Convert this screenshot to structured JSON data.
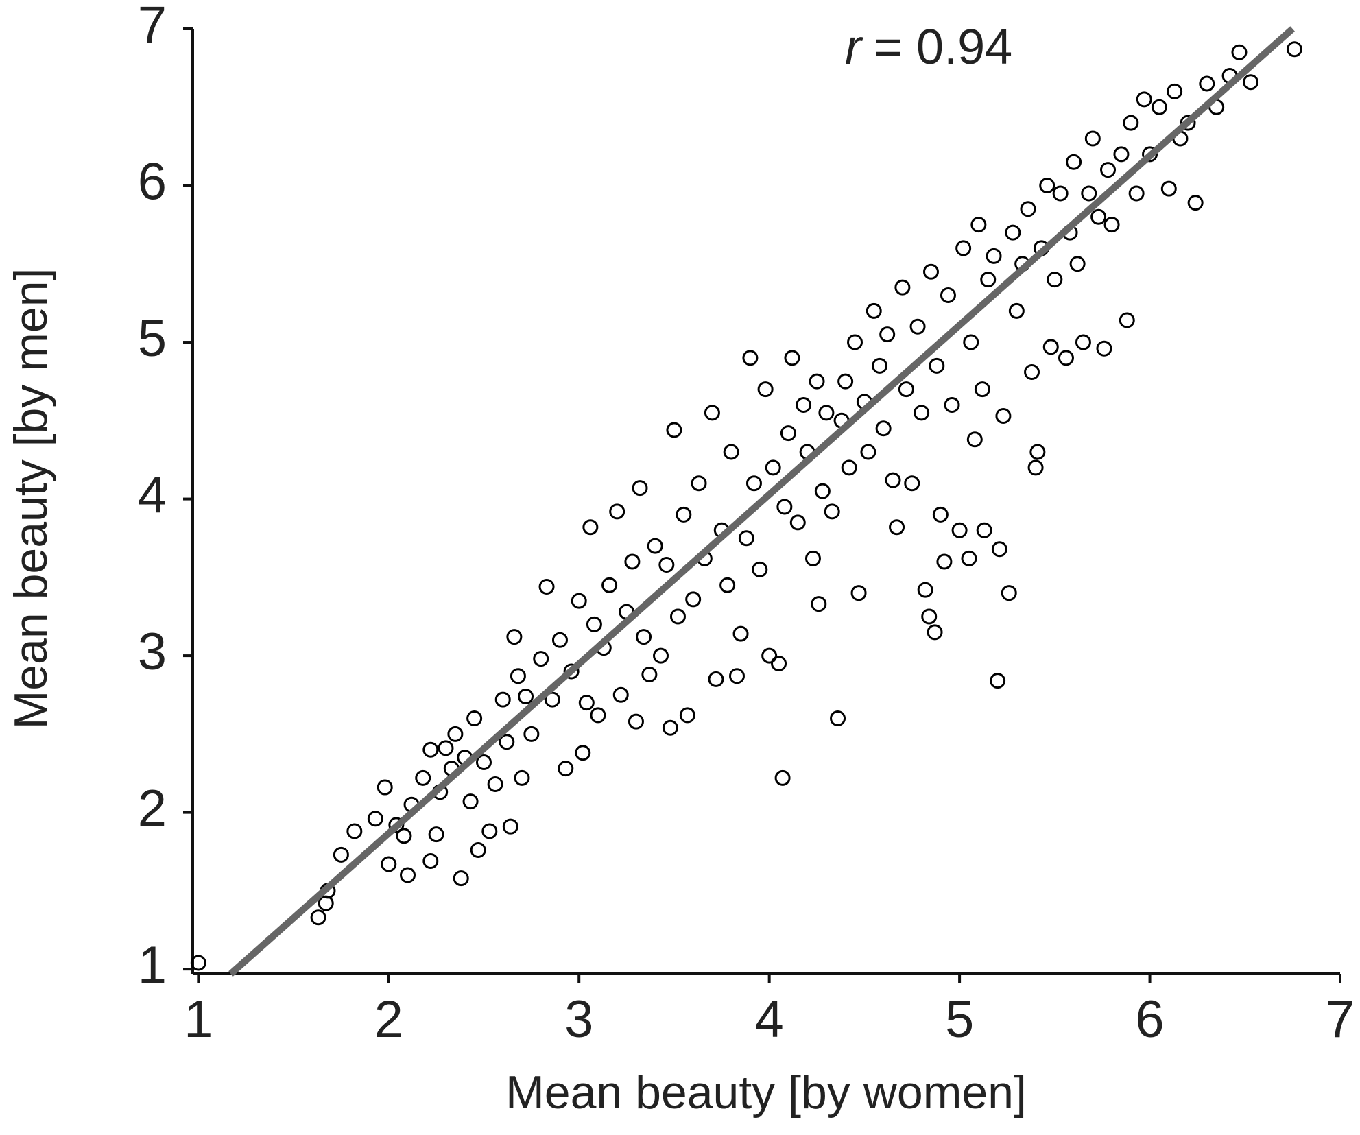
{
  "chart_data": {
    "type": "scatter",
    "xlabel": "Mean beauty [by women]",
    "ylabel": "Mean beauty [by men]",
    "annotation": {
      "variable": "r",
      "text": "= 0.94"
    },
    "xlim": [
      0.97,
      7
    ],
    "ylim": [
      0.97,
      7
    ],
    "xticks": [
      1,
      2,
      3,
      4,
      5,
      6,
      7
    ],
    "yticks": [
      1,
      2,
      3,
      4,
      5,
      6,
      7
    ],
    "marker": "open-circle",
    "series": [
      {
        "color": "#000000",
        "x": [
          1.0,
          1.63,
          1.67,
          1.68,
          1.75,
          1.82,
          1.93,
          1.98,
          2.0,
          2.04,
          2.08,
          2.1,
          2.12,
          2.18,
          2.22,
          2.22,
          2.25,
          2.27,
          2.3,
          2.33,
          2.35,
          2.38,
          2.4,
          2.43,
          2.45,
          2.47,
          2.5,
          2.53,
          2.56,
          2.6,
          2.62,
          2.64,
          2.66,
          2.68,
          2.7,
          2.72,
          2.75,
          2.8,
          2.83,
          2.86,
          2.9,
          2.93,
          2.96,
          3.0,
          3.02,
          3.04,
          3.06,
          3.08,
          3.1,
          3.13,
          3.16,
          3.2,
          3.22,
          3.25,
          3.28,
          3.3,
          3.32,
          3.34,
          3.37,
          3.4,
          3.43,
          3.46,
          3.48,
          3.5,
          3.52,
          3.55,
          3.57,
          3.6,
          3.63,
          3.66,
          3.7,
          3.72,
          3.75,
          3.78,
          3.8,
          3.83,
          3.85,
          3.88,
          3.9,
          3.92,
          3.95,
          3.98,
          4.0,
          4.02,
          4.05,
          4.07,
          4.08,
          4.1,
          4.12,
          4.15,
          4.18,
          4.2,
          4.23,
          4.25,
          4.26,
          4.28,
          4.3,
          4.33,
          4.36,
          4.38,
          4.4,
          4.42,
          4.45,
          4.47,
          4.5,
          4.52,
          4.55,
          4.58,
          4.6,
          4.62,
          4.65,
          4.67,
          4.7,
          4.72,
          4.75,
          4.78,
          4.8,
          4.82,
          4.84,
          4.85,
          4.87,
          4.88,
          4.9,
          4.92,
          4.94,
          4.96,
          5.0,
          5.02,
          5.05,
          5.06,
          5.08,
          5.1,
          5.12,
          5.13,
          5.15,
          5.18,
          5.2,
          5.21,
          5.23,
          5.26,
          5.28,
          5.3,
          5.33,
          5.36,
          5.38,
          5.4,
          5.41,
          5.43,
          5.46,
          5.48,
          5.5,
          5.53,
          5.56,
          5.58,
          5.6,
          5.62,
          5.65,
          5.68,
          5.7,
          5.73,
          5.76,
          5.78,
          5.8,
          5.85,
          5.88,
          5.9,
          5.93,
          5.97,
          6.0,
          6.05,
          6.1,
          6.13,
          6.16,
          6.2,
          6.24,
          6.3,
          6.35,
          6.42,
          6.47,
          6.53,
          6.76
        ],
        "values": [
          1.04,
          1.33,
          1.42,
          1.5,
          1.73,
          1.88,
          1.96,
          2.16,
          1.67,
          1.92,
          1.85,
          1.6,
          2.05,
          2.22,
          1.69,
          2.4,
          1.86,
          2.13,
          2.41,
          2.28,
          2.5,
          1.58,
          2.35,
          2.07,
          2.6,
          1.76,
          2.32,
          1.88,
          2.18,
          2.72,
          2.45,
          1.91,
          3.12,
          2.87,
          2.22,
          2.74,
          2.5,
          2.98,
          3.44,
          2.72,
          3.1,
          2.28,
          2.9,
          3.35,
          2.38,
          2.7,
          3.82,
          3.2,
          2.62,
          3.05,
          3.45,
          3.92,
          2.75,
          3.28,
          3.6,
          2.58,
          4.07,
          3.12,
          2.88,
          3.7,
          3.0,
          3.58,
          2.54,
          4.44,
          3.25,
          3.9,
          2.62,
          3.36,
          4.1,
          3.62,
          4.55,
          2.85,
          3.8,
          3.45,
          4.3,
          2.87,
          3.14,
          3.75,
          4.9,
          4.1,
          3.55,
          4.7,
          3.0,
          4.2,
          2.95,
          2.22,
          3.95,
          4.42,
          4.9,
          3.85,
          4.6,
          4.3,
          3.62,
          4.75,
          3.33,
          4.05,
          4.55,
          3.92,
          2.6,
          4.5,
          4.75,
          4.2,
          5.0,
          3.4,
          4.62,
          4.3,
          5.2,
          4.85,
          4.45,
          5.05,
          4.12,
          3.82,
          5.35,
          4.7,
          4.1,
          5.1,
          4.55,
          3.42,
          3.25,
          5.45,
          3.15,
          4.85,
          3.9,
          3.6,
          5.3,
          4.6,
          3.8,
          5.6,
          3.62,
          5.0,
          4.38,
          5.75,
          4.7,
          3.8,
          5.4,
          5.55,
          2.84,
          3.68,
          4.53,
          3.4,
          5.7,
          5.2,
          5.5,
          5.85,
          4.81,
          4.2,
          4.3,
          5.6,
          6.0,
          4.97,
          5.4,
          5.95,
          4.9,
          5.7,
          6.15,
          5.5,
          5.0,
          5.95,
          6.3,
          5.8,
          4.96,
          6.1,
          5.75,
          6.2,
          5.14,
          6.4,
          5.95,
          6.55,
          6.2,
          6.5,
          5.98,
          6.6,
          6.3,
          6.4,
          5.89,
          6.65,
          6.5,
          6.7,
          6.85,
          6.66,
          6.87
        ]
      }
    ],
    "fit_line": {
      "color": "#666666",
      "x": [
        1.17,
        6.75
      ],
      "y": [
        0.97,
        7
      ]
    }
  }
}
